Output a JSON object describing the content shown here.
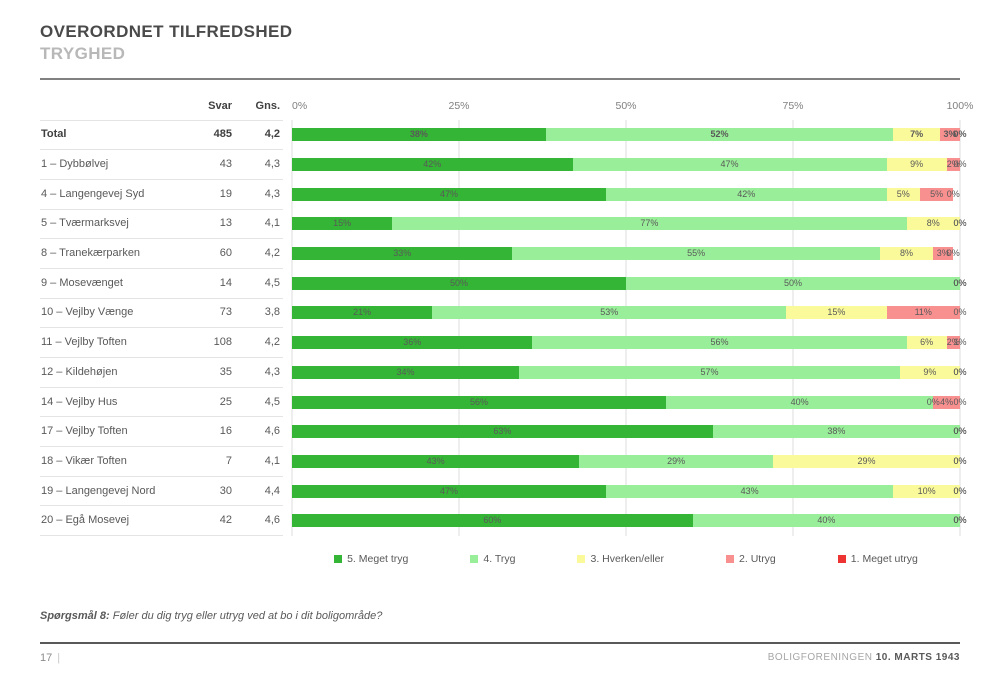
{
  "page": {
    "title": "OVERORDNET TILFREDSHED",
    "subtitle": "TRYGHED",
    "question_label": "Spørgsmål 8:",
    "question_text": " Føler du dig tryg eller utryg ved at bo i dit boligområde?",
    "page_number": "17",
    "footer_org": "BOLIGFORENINGEN ",
    "footer_date": "10. MARTS 1943"
  },
  "table": {
    "col_svar": "Svar",
    "col_gns": "Gns."
  },
  "chart_data": {
    "type": "bar",
    "stacked": true,
    "orientation": "horizontal",
    "xlim": [
      0,
      100
    ],
    "axis_ticks": [
      "0%",
      "25%",
      "50%",
      "75%",
      "100%"
    ],
    "axis_positions": [
      0,
      25,
      50,
      75,
      100
    ],
    "grid": true,
    "legend_position": "bottom",
    "legend": [
      {
        "label": "5. Meget tryg",
        "color": "#35b535"
      },
      {
        "label": "4. Tryg",
        "color": "#99ee99"
      },
      {
        "label": "3. Hverken/eller",
        "color": "#fafa9b"
      },
      {
        "label": "2. Utryg",
        "color": "#f89090"
      },
      {
        "label": "1. Meget utryg",
        "color": "#ee3333"
      }
    ],
    "rows": [
      {
        "label": "Total",
        "svar": "485",
        "gns": "4,2",
        "bold": true,
        "values": [
          38,
          52,
          7,
          3,
          0
        ]
      },
      {
        "label": "1 – Dybbølvej",
        "svar": "43",
        "gns": "4,3",
        "bold": false,
        "values": [
          42,
          47,
          9,
          2,
          0
        ]
      },
      {
        "label": "4 – Langengevej Syd",
        "svar": "19",
        "gns": "4,3",
        "bold": false,
        "values": [
          47,
          42,
          5,
          5,
          0
        ]
      },
      {
        "label": "5 – Tværmarksvej",
        "svar": "13",
        "gns": "4,1",
        "bold": false,
        "values": [
          15,
          77,
          8,
          0,
          0
        ]
      },
      {
        "label": "8 – Tranekærparken",
        "svar": "60",
        "gns": "4,2",
        "bold": false,
        "values": [
          33,
          55,
          8,
          3,
          0
        ]
      },
      {
        "label": "9 – Mosevænget",
        "svar": "14",
        "gns": "4,5",
        "bold": false,
        "values": [
          50,
          50,
          0,
          0,
          0
        ]
      },
      {
        "label": "10 – Vejlby Vænge",
        "svar": "73",
        "gns": "3,8",
        "bold": false,
        "values": [
          21,
          53,
          15,
          11,
          0
        ]
      },
      {
        "label": "11 – Vejlby Toften",
        "svar": "108",
        "gns": "4,2",
        "bold": false,
        "values": [
          36,
          56,
          6,
          2,
          1
        ]
      },
      {
        "label": "12 – Kildehøjen",
        "svar": "35",
        "gns": "4,3",
        "bold": false,
        "values": [
          34,
          57,
          9,
          0,
          0
        ]
      },
      {
        "label": "14 – Vejlby Hus",
        "svar": "25",
        "gns": "4,5",
        "bold": false,
        "values": [
          56,
          40,
          0,
          4,
          0
        ]
      },
      {
        "label": "17 – Vejlby Toften",
        "svar": "16",
        "gns": "4,6",
        "bold": false,
        "values": [
          63,
          38,
          0,
          0,
          0
        ]
      },
      {
        "label": "18 – Vikær Toften",
        "svar": "7",
        "gns": "4,1",
        "bold": false,
        "values": [
          43,
          29,
          29,
          0,
          0
        ]
      },
      {
        "label": "19 – Langengevej Nord",
        "svar": "30",
        "gns": "4,4",
        "bold": false,
        "values": [
          47,
          43,
          10,
          0,
          0
        ]
      },
      {
        "label": "20 – Egå Mosevej",
        "svar": "42",
        "gns": "4,6",
        "bold": false,
        "values": [
          60,
          40,
          0,
          0,
          0
        ]
      }
    ]
  }
}
